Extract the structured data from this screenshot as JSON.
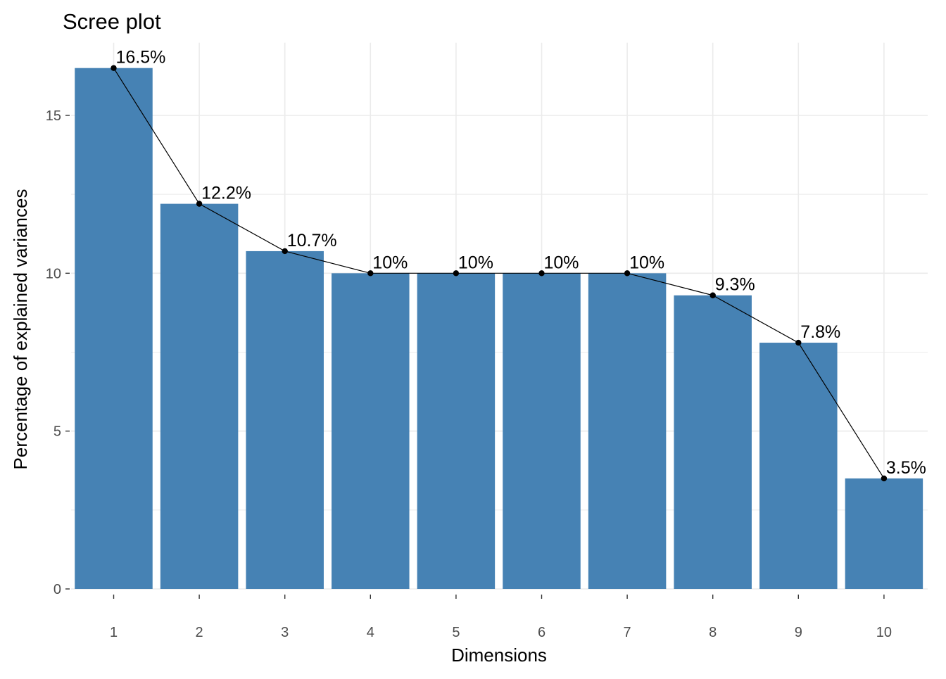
{
  "chart_data": {
    "type": "bar",
    "title": "Scree plot",
    "xlabel": "Dimensions",
    "ylabel": "Percentage of explained variances",
    "categories": [
      "1",
      "2",
      "3",
      "4",
      "5",
      "6",
      "7",
      "8",
      "9",
      "10"
    ],
    "values": [
      16.5,
      12.2,
      10.7,
      10.0,
      10.0,
      10.0,
      10.0,
      9.3,
      7.8,
      3.5
    ],
    "data_labels": [
      "16.5%",
      "12.2%",
      "10.7%",
      "10%",
      "10%",
      "10%",
      "10%",
      "9.3%",
      "7.8%",
      "3.5%"
    ],
    "y_ticks": [
      0,
      5,
      10,
      15
    ],
    "ylim": [
      0,
      17.3
    ],
    "grid": true,
    "overlay_line": true,
    "colors": {
      "bar": "#4682B4",
      "line": "#000000",
      "grid": "#EBEBEB",
      "tick_label": "#4D4D4D",
      "text": "#000000"
    }
  }
}
